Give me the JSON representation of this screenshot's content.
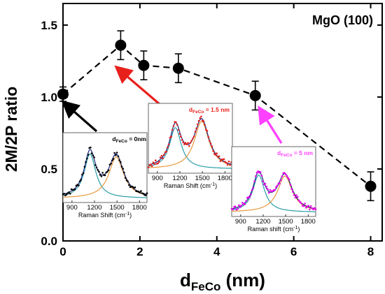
{
  "chart_data": {
    "type": "scatter",
    "annotation": "MgO (100)",
    "xlabel": {
      "main": "d",
      "sub": "FeCo",
      "unit": " (nm)"
    },
    "ylabel": "2M/2P ratio",
    "xlim": [
      0,
      8.3
    ],
    "ylim": [
      0,
      1.65
    ],
    "xticks": [
      "0",
      "2",
      "4",
      "6",
      "8"
    ],
    "yticks": [
      "0.0",
      "0.5",
      "1.0",
      "1.5"
    ],
    "line_style": "dashed",
    "series": [
      {
        "points": [
          {
            "x": 0,
            "y": 1.02,
            "err": 0.05
          },
          {
            "x": 1.5,
            "y": 1.36,
            "err": 0.1
          },
          {
            "x": 2.1,
            "y": 1.22,
            "err": 0.1
          },
          {
            "x": 3.0,
            "y": 1.2,
            "err": 0.1
          },
          {
            "x": 5.0,
            "y": 1.01,
            "err": 0.1
          },
          {
            "x": 8.0,
            "y": 0.38,
            "err": 0.1
          }
        ]
      }
    ],
    "insets": [
      {
        "label_main": "d",
        "label_sub": "FeCo",
        "label_value": " = 0nm",
        "label_color": "#000000",
        "data_color": "#000000",
        "arrow_color": "#000000",
        "xlabel": "Raman Shift (cm",
        "xlabel_sup": "-1",
        "xlabel_end": ")",
        "xticks": [
          "900",
          "1200",
          "1500",
          "1800"
        ],
        "points_to_x": 0
      },
      {
        "label_main": "d",
        "label_sub": "FeCo",
        "label_value": " = 1.5 nm",
        "label_color": "#e8201c",
        "data_color": "#e8201c",
        "arrow_color": "#e8201c",
        "xlabel": "Raman Shift (cm",
        "xlabel_sup": "-1",
        "xlabel_end": ")",
        "xticks": [
          "900",
          "1200",
          "1500",
          "1800"
        ],
        "points_to_x": 1.5
      },
      {
        "label_main": "d",
        "label_sub": "FeCo",
        "label_value": " = 5 nm",
        "label_color": "#ff40ff",
        "data_color": "#ee00ee",
        "arrow_color": "#ff40ff",
        "xlabel": "Raman shift (cm",
        "xlabel_sup": "-1",
        "xlabel_end": ")",
        "xticks": [
          "900",
          "1200",
          "1500",
          "1800"
        ],
        "points_to_x": 5
      }
    ],
    "fit_colors": {
      "g_peak": "#2a9da8",
      "d_peak": "#e69a3c",
      "envelope": "#1a237e"
    }
  }
}
